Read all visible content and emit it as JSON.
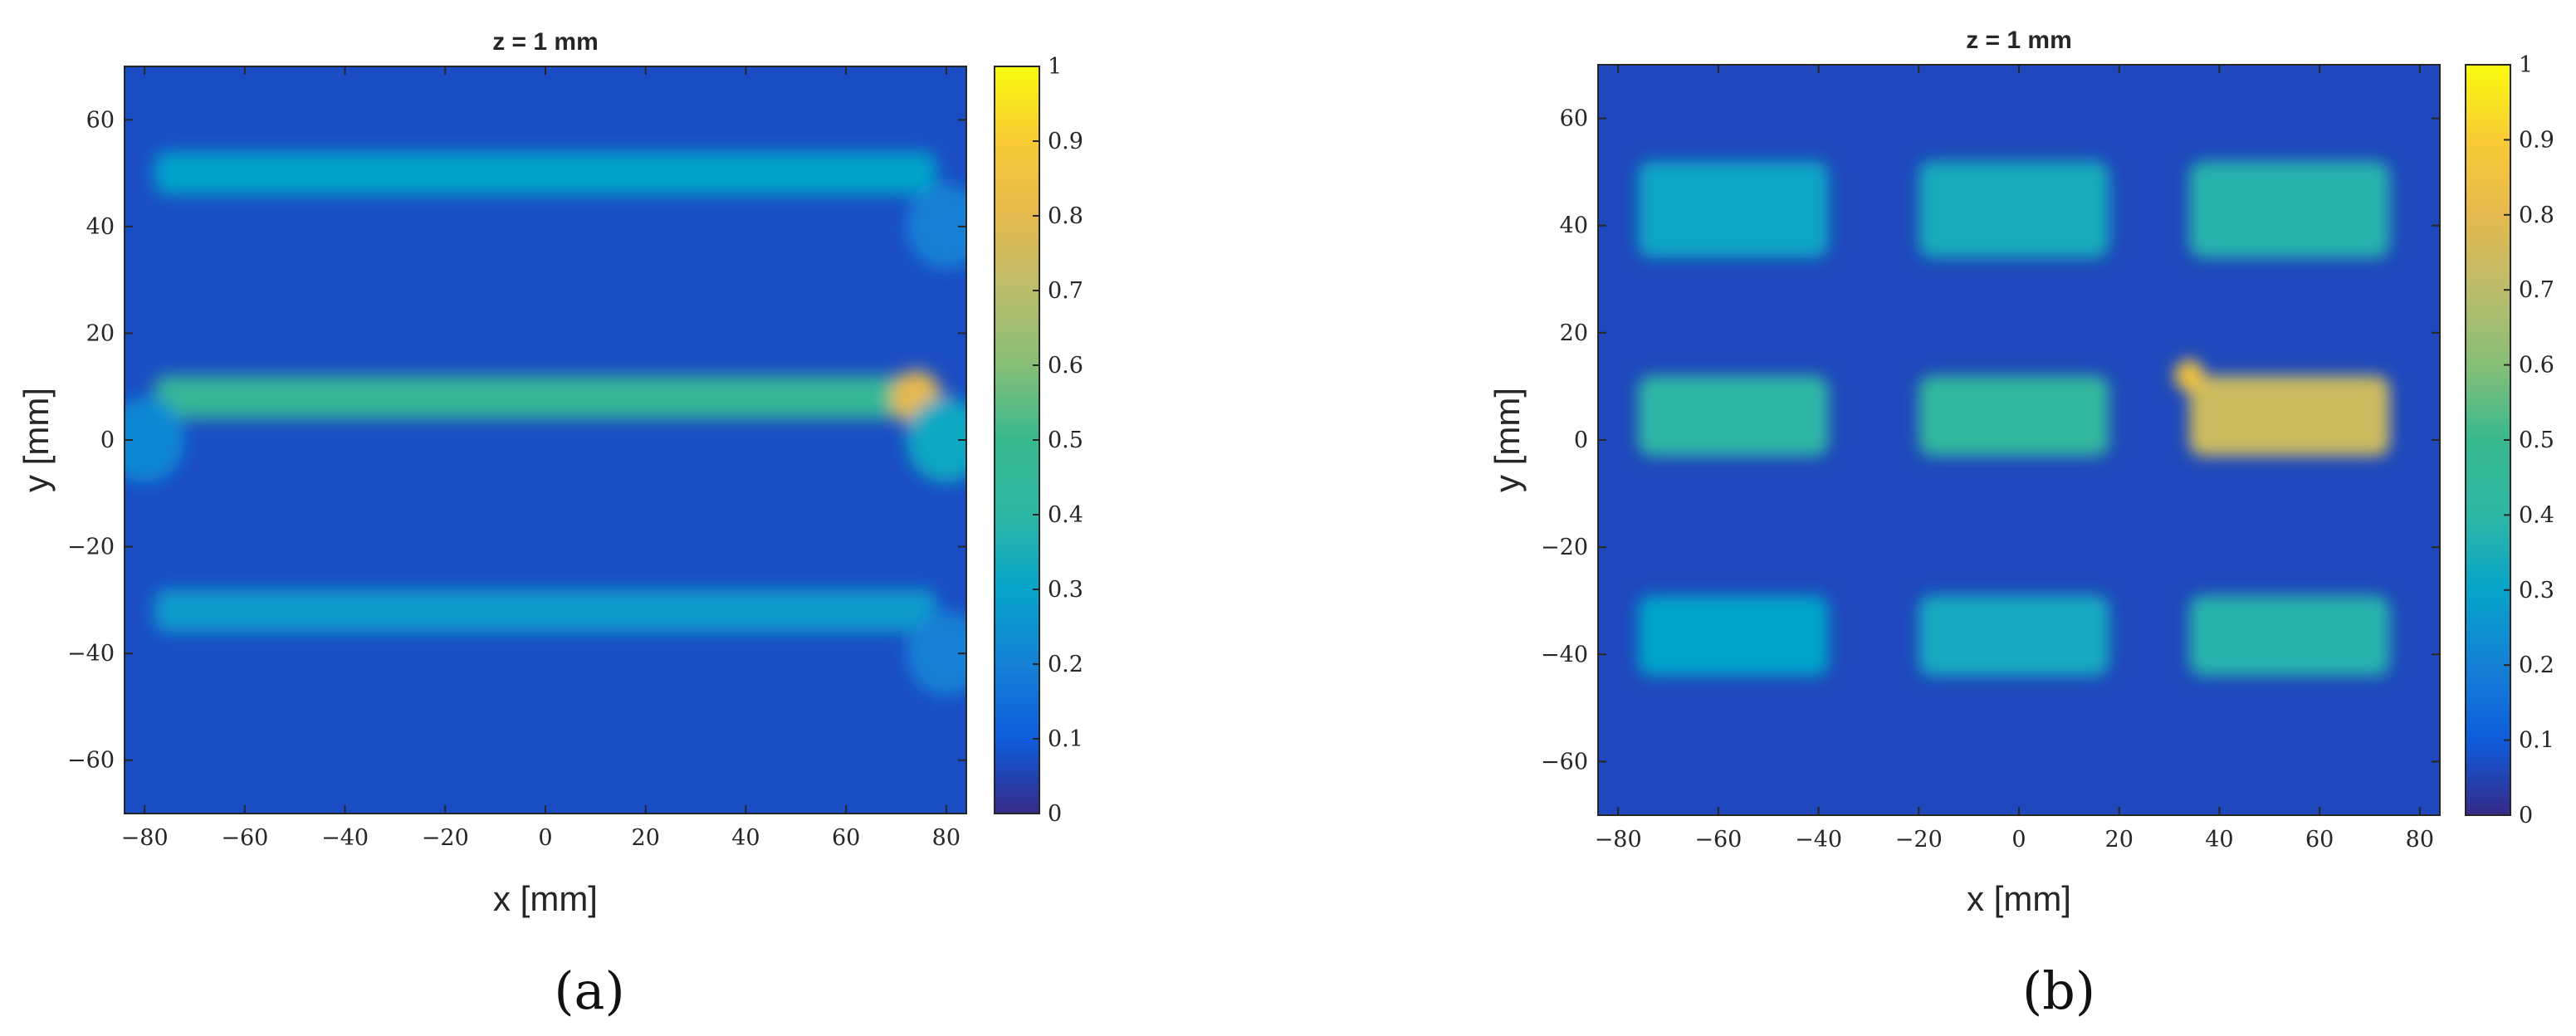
{
  "chart_data": [
    {
      "type": "heatmap",
      "panel_label": "(a)",
      "title": "z = 1 mm",
      "xlabel": "x [mm]",
      "ylabel": "y [mm]",
      "xlim": [
        -84,
        84
      ],
      "ylim": [
        -70,
        70
      ],
      "xticks": [
        -80,
        -60,
        -40,
        -20,
        0,
        20,
        40,
        60,
        80
      ],
      "xtick_labels": [
        "−80",
        "−60",
        "−40",
        "−20",
        "0",
        "20",
        "40",
        "60",
        "80"
      ],
      "yticks": [
        -60,
        -40,
        -20,
        0,
        20,
        40,
        60
      ],
      "ytick_labels": [
        "−60",
        "−40",
        "−20",
        "0",
        "20",
        "40",
        "60"
      ],
      "colorbar": {
        "ticks": [
          0,
          0.1,
          0.2,
          0.3,
          0.4,
          0.5,
          0.6,
          0.7,
          0.8,
          0.9,
          1
        ],
        "tick_labels": [
          "0",
          "0.1",
          "0.2",
          "0.3",
          "0.4",
          "0.5",
          "0.6",
          "0.7",
          "0.8",
          "0.9",
          "1"
        ],
        "range": [
          0,
          1
        ],
        "colormap": "parula"
      },
      "background_value": 0.07,
      "features": [
        {
          "kind": "band",
          "x": [
            -78,
            78
          ],
          "y": 50,
          "width": 8,
          "value": 0.3
        },
        {
          "kind": "band",
          "x": [
            -78,
            78
          ],
          "y": 8,
          "width": 8,
          "value": 0.46
        },
        {
          "kind": "band",
          "x": [
            -78,
            78
          ],
          "y": -32,
          "width": 8,
          "value": 0.28
        },
        {
          "kind": "spot",
          "x": 74,
          "y": 8,
          "r": 5,
          "value": 0.8
        },
        {
          "kind": "spot",
          "x": 80,
          "y": 0,
          "r": 8,
          "value": 0.32
        },
        {
          "kind": "spot",
          "x": -80,
          "y": 0,
          "r": 8,
          "value": 0.22
        },
        {
          "kind": "spot",
          "x": 80,
          "y": 40,
          "r": 8,
          "value": 0.2
        },
        {
          "kind": "spot",
          "x": 80,
          "y": -40,
          "r": 8,
          "value": 0.2
        }
      ]
    },
    {
      "type": "heatmap",
      "panel_label": "(b)",
      "title": "z = 1 mm",
      "xlabel": "x [mm]",
      "ylabel": "y [mm]",
      "xlim": [
        -84,
        84
      ],
      "ylim": [
        -70,
        70
      ],
      "xticks": [
        -80,
        -60,
        -40,
        -20,
        0,
        20,
        40,
        60,
        80
      ],
      "xtick_labels": [
        "−80",
        "−60",
        "−40",
        "−20",
        "0",
        "20",
        "40",
        "60",
        "80"
      ],
      "yticks": [
        -60,
        -40,
        -20,
        0,
        20,
        40,
        60
      ],
      "ytick_labels": [
        "−60",
        "−40",
        "−20",
        "0",
        "20",
        "40",
        "60"
      ],
      "colorbar": {
        "ticks": [
          0,
          0.1,
          0.2,
          0.3,
          0.4,
          0.5,
          0.6,
          0.7,
          0.8,
          0.9,
          1
        ],
        "tick_labels": [
          "0",
          "0.1",
          "0.2",
          "0.3",
          "0.4",
          "0.5",
          "0.6",
          "0.7",
          "0.8",
          "0.9",
          "1"
        ],
        "range": [
          0,
          1
        ],
        "colormap": "parula"
      },
      "background_value": 0.06,
      "features": [
        {
          "kind": "cell",
          "x": [
            -76,
            -38
          ],
          "y": [
            34,
            52
          ],
          "value": 0.31
        },
        {
          "kind": "cell",
          "x": [
            -20,
            18
          ],
          "y": [
            34,
            52
          ],
          "value": 0.34
        },
        {
          "kind": "cell",
          "x": [
            34,
            74
          ],
          "y": [
            34,
            52
          ],
          "value": 0.38
        },
        {
          "kind": "cell",
          "x": [
            -76,
            -38
          ],
          "y": [
            -3,
            12
          ],
          "value": 0.4
        },
        {
          "kind": "cell",
          "x": [
            -20,
            18
          ],
          "y": [
            -3,
            12
          ],
          "value": 0.44
        },
        {
          "kind": "cell",
          "x": [
            34,
            74
          ],
          "y": [
            -3,
            12
          ],
          "value": 0.74
        },
        {
          "kind": "cell",
          "x": [
            -76,
            -38
          ],
          "y": [
            -44,
            -29
          ],
          "value": 0.3
        },
        {
          "kind": "cell",
          "x": [
            -20,
            18
          ],
          "y": [
            -44,
            -29
          ],
          "value": 0.33
        },
        {
          "kind": "cell",
          "x": [
            34,
            74
          ],
          "y": [
            -44,
            -29
          ],
          "value": 0.38
        },
        {
          "kind": "spot",
          "x": 34,
          "y": 12,
          "r": 3,
          "value": 0.85
        }
      ]
    }
  ]
}
